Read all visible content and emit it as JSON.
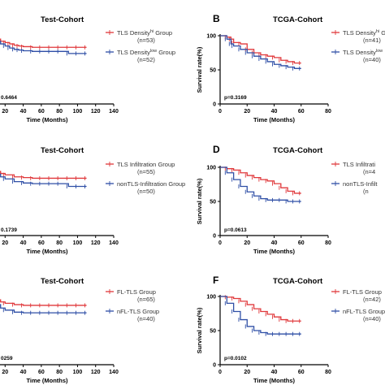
{
  "colors": {
    "red": "#e0383b",
    "blue": "#2f4fa6",
    "axis": "#000000"
  },
  "chart_data": [
    {
      "id": "A",
      "panel_label": "",
      "type": "line",
      "title": "Test-Cohort",
      "xlabel": "Time (Months)",
      "ylabel": "",
      "xlim": [
        0,
        140
      ],
      "ylim": [
        0,
        100
      ],
      "xticks": [
        "20",
        "40",
        "60",
        "80",
        "100",
        "120",
        "140"
      ],
      "yticks": [],
      "pvalue": "0.6464",
      "series": [
        {
          "name": "TLS Density",
          "name_sup": "hi",
          "name_tail": " Group",
          "count": "(n=53)",
          "color": "red",
          "x": [
            0,
            5,
            10,
            15,
            20,
            25,
            30,
            35,
            40,
            50,
            60,
            70,
            80,
            90,
            100,
            110
          ],
          "y": [
            100,
            97,
            95,
            92,
            90,
            88,
            86,
            85,
            84,
            83,
            83,
            83,
            83,
            83,
            83,
            83
          ]
        },
        {
          "name": "TLS Density",
          "name_sup": "low",
          "name_tail": " Group",
          "count": "(n=52)",
          "color": "blue",
          "x": [
            0,
            5,
            10,
            15,
            20,
            25,
            30,
            35,
            40,
            50,
            60,
            70,
            80,
            90,
            100,
            110
          ],
          "y": [
            100,
            96,
            92,
            88,
            85,
            82,
            80,
            79,
            78,
            77,
            77,
            77,
            77,
            74,
            74,
            74
          ]
        }
      ]
    },
    {
      "id": "B",
      "panel_label": "B",
      "type": "line",
      "title": "TCGA-Cohort",
      "xlabel": "Time (Months)",
      "ylabel": "Survival rate(%)",
      "xlim": [
        0,
        80
      ],
      "ylim": [
        0,
        100
      ],
      "xticks": [
        "0",
        "20",
        "40",
        "60",
        "80"
      ],
      "yticks": [
        "0",
        "50",
        "100"
      ],
      "pvalue": "p=0.3169",
      "series": [
        {
          "name": "TLS Density",
          "name_sup": "hi",
          "name_tail": " G",
          "count": "(n=41)",
          "color": "red",
          "x": [
            0,
            5,
            8,
            10,
            15,
            20,
            25,
            30,
            35,
            40,
            45,
            50,
            55,
            60
          ],
          "y": [
            100,
            98,
            95,
            90,
            88,
            80,
            75,
            72,
            70,
            68,
            64,
            62,
            60,
            60
          ]
        },
        {
          "name": "TLS Density",
          "name_sup": "low",
          "name_tail": "",
          "count": "(n=40)",
          "color": "blue",
          "x": [
            0,
            5,
            8,
            10,
            15,
            20,
            25,
            30,
            35,
            40,
            45,
            50,
            55,
            60
          ],
          "y": [
            100,
            95,
            88,
            85,
            80,
            75,
            70,
            66,
            62,
            58,
            56,
            54,
            52,
            52
          ]
        }
      ]
    },
    {
      "id": "C",
      "panel_label": "",
      "type": "line",
      "title": "Test-Cohort",
      "xlabel": "Time (Months)",
      "ylabel": "",
      "xlim": [
        0,
        140
      ],
      "ylim": [
        0,
        100
      ],
      "xticks": [
        "20",
        "40",
        "60",
        "80",
        "100",
        "120",
        "140"
      ],
      "yticks": [],
      "pvalue": "0.1739",
      "series": [
        {
          "name": "TLS Infiltration Group",
          "name_sup": "",
          "name_tail": "",
          "count": "(n=55)",
          "color": "red",
          "x": [
            0,
            5,
            10,
            15,
            20,
            30,
            40,
            50,
            60,
            70,
            80,
            90,
            100,
            110
          ],
          "y": [
            100,
            97,
            94,
            91,
            89,
            86,
            85,
            84,
            84,
            84,
            84,
            84,
            84,
            84
          ]
        },
        {
          "name": "nonTLS-Infiltration Group",
          "name_sup": "",
          "name_tail": "",
          "count": "(n=50)",
          "color": "blue",
          "x": [
            0,
            5,
            10,
            15,
            20,
            30,
            40,
            50,
            60,
            70,
            80,
            90,
            100,
            110
          ],
          "y": [
            100,
            95,
            90,
            86,
            83,
            79,
            77,
            76,
            76,
            76,
            76,
            72,
            72,
            72
          ]
        }
      ]
    },
    {
      "id": "D",
      "panel_label": "D",
      "type": "line",
      "title": "TCGA-Cohort",
      "xlabel": "Time (Months)",
      "ylabel": "Survival rate(%)",
      "xlim": [
        0,
        80
      ],
      "ylim": [
        0,
        100
      ],
      "xticks": [
        "0",
        "20",
        "40",
        "60",
        "80"
      ],
      "yticks": [
        "0",
        "50",
        "100"
      ],
      "pvalue": "p=0.0613",
      "series": [
        {
          "name": "TLS Infiltrati",
          "name_sup": "",
          "name_tail": "",
          "count": "(n=4",
          "color": "red",
          "x": [
            0,
            5,
            10,
            15,
            20,
            25,
            30,
            35,
            40,
            45,
            50,
            55,
            60
          ],
          "y": [
            100,
            98,
            96,
            92,
            88,
            85,
            82,
            80,
            76,
            70,
            65,
            62,
            62
          ]
        },
        {
          "name": "nonTLS-Infilt",
          "name_sup": "",
          "name_tail": "",
          "count": "(n",
          "color": "blue",
          "x": [
            0,
            5,
            10,
            15,
            20,
            25,
            30,
            35,
            40,
            45,
            50,
            55,
            60
          ],
          "y": [
            100,
            92,
            82,
            72,
            64,
            58,
            54,
            52,
            52,
            52,
            50,
            50,
            50
          ]
        }
      ]
    },
    {
      "id": "E",
      "panel_label": "",
      "type": "line",
      "title": "Test-Cohort",
      "xlabel": "Time (Months)",
      "ylabel": "",
      "xlim": [
        0,
        140
      ],
      "ylim": [
        0,
        100
      ],
      "xticks": [
        "20",
        "40",
        "60",
        "80",
        "100",
        "120",
        "140"
      ],
      "yticks": [],
      "pvalue": "0259",
      "series": [
        {
          "name": "FL-TLS Group",
          "name_sup": "",
          "name_tail": "",
          "count": "(n=65)",
          "color": "red",
          "x": [
            0,
            5,
            10,
            15,
            20,
            30,
            40,
            50,
            60,
            70,
            80,
            90,
            100,
            110
          ],
          "y": [
            100,
            97,
            95,
            92,
            90,
            88,
            87,
            87,
            87,
            87,
            87,
            87,
            87,
            87
          ]
        },
        {
          "name": "nFL-TLS Group",
          "name_sup": "",
          "name_tail": "",
          "count": "(n=40)",
          "color": "blue",
          "x": [
            0,
            5,
            10,
            15,
            20,
            30,
            40,
            50,
            60,
            70,
            80,
            90,
            100,
            110
          ],
          "y": [
            100,
            94,
            88,
            83,
            80,
            77,
            76,
            76,
            76,
            76,
            76,
            76,
            76,
            76
          ]
        }
      ]
    },
    {
      "id": "F",
      "panel_label": "F",
      "type": "line",
      "title": "TCGA-Cohort",
      "xlabel": "Time (Months)",
      "ylabel": "Survival rate(%)",
      "xlim": [
        0,
        80
      ],
      "ylim": [
        0,
        100
      ],
      "xticks": [
        "0",
        "20",
        "40",
        "60",
        "80"
      ],
      "yticks": [
        "0",
        "50",
        "100"
      ],
      "pvalue": "p=0.0102",
      "series": [
        {
          "name": "FL-TLS Group",
          "name_sup": "",
          "name_tail": "",
          "count": "(n=42)",
          "color": "red",
          "x": [
            0,
            5,
            10,
            15,
            20,
            25,
            30,
            35,
            40,
            45,
            50,
            55,
            60
          ],
          "y": [
            100,
            99,
            97,
            93,
            88,
            82,
            78,
            74,
            70,
            66,
            64,
            64,
            64
          ]
        },
        {
          "name": "nFL-TLS Group",
          "name_sup": "",
          "name_tail": "",
          "count": "(n=40)",
          "color": "blue",
          "x": [
            0,
            5,
            10,
            15,
            20,
            25,
            30,
            35,
            40,
            45,
            50,
            55,
            60
          ],
          "y": [
            100,
            90,
            78,
            66,
            56,
            50,
            47,
            45,
            45,
            45,
            45,
            45,
            45
          ]
        }
      ]
    }
  ]
}
